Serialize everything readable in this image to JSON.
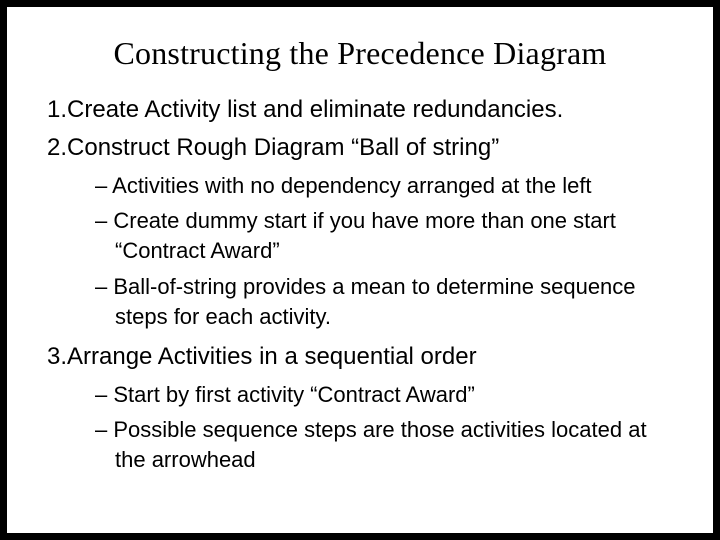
{
  "slide": {
    "title": "Constructing the Precedence Diagram",
    "title_font": "Times New Roman",
    "title_fontsize": 32,
    "body_font": "Arial",
    "body_fontsize": 24,
    "sub_fontsize": 22,
    "text_color": "#000000",
    "background_color": "#ffffff",
    "border_color": "#000000",
    "border_width": 7,
    "items": [
      {
        "num": "1.",
        "text": "Create Activity list and eliminate redundancies.",
        "subs": []
      },
      {
        "num": "2.",
        "text": "Construct Rough Diagram “Ball of string”",
        "subs": [
          "Activities with no dependency arranged at the left",
          "Create dummy start if you have more than one start “Contract Award”",
          "Ball-of-string provides a mean to determine sequence steps for each activity."
        ]
      },
      {
        "num": "3.",
        "text": "Arrange Activities in a sequential order",
        "subs": [
          "Start by first activity “Contract Award”",
          "Possible sequence steps are those activities located at the arrowhead"
        ]
      }
    ]
  }
}
